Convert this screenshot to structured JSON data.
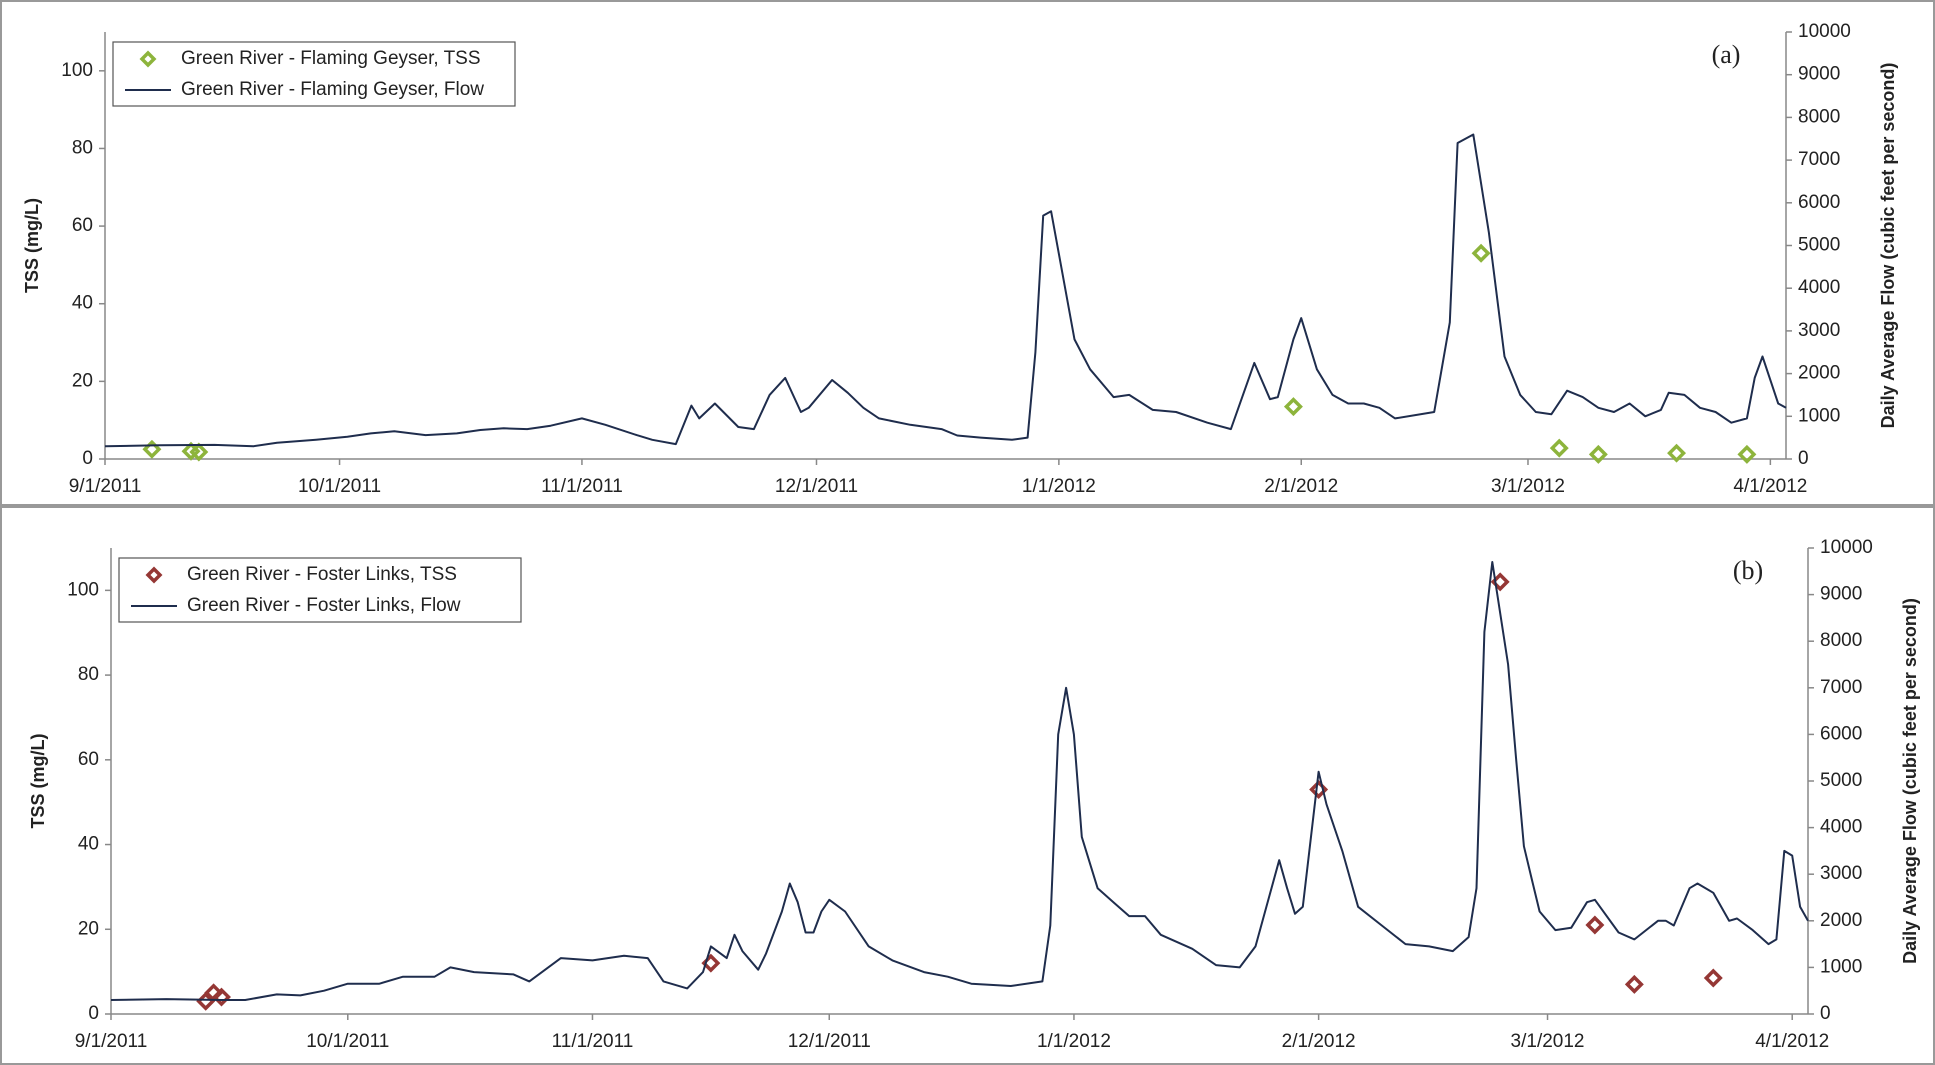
{
  "chart_data": [
    {
      "type": "line",
      "panel_label": "(a)",
      "y_label": "TSS (mg/L)",
      "y2_label": "Daily Average Flow (cubic feet per second)",
      "xlim": [
        "9/1/2011",
        "4/3/2012"
      ],
      "xticks": [
        "9/1/2011",
        "10/1/2011",
        "11/1/2011",
        "12/1/2011",
        "1/1/2012",
        "2/1/2012",
        "3/1/2012",
        "4/1/2012"
      ],
      "ylim": [
        0,
        110
      ],
      "yticks": [
        0,
        20,
        40,
        60,
        80,
        100
      ],
      "y2lim": [
        0,
        10000
      ],
      "y2ticks": [
        0,
        1000,
        2000,
        3000,
        4000,
        5000,
        6000,
        7000,
        8000,
        9000,
        10000
      ],
      "legend": "upper left",
      "series": [
        {
          "name": "Green River - Flaming Geyser, TSS",
          "marker": "diamond",
          "color": "#8db43c",
          "axis": "y",
          "x": [
            "9/7/2011",
            "9/12/2011",
            "9/13/2011",
            "1/31/2012",
            "2/24/2012",
            "3/5/2012",
            "3/10/2012",
            "3/20/2012",
            "3/29/2012"
          ],
          "values": [
            2.5,
            2,
            1.8,
            13.5,
            53,
            2.8,
            1.2,
            1.5,
            1.2
          ]
        },
        {
          "name": "Green River - Flaming Geyser, Flow",
          "marker": "line",
          "color": "#1f2d4d",
          "axis": "y2",
          "x": [
            "9/1/2011",
            "9/8/2011",
            "9/15/2011",
            "9/20/2011",
            "9/23/2011",
            "9/28/2011",
            "10/2/2011",
            "10/5/2011",
            "10/8/2011",
            "10/12/2011",
            "10/16/2011",
            "10/19/2011",
            "10/22/2011",
            "10/25/2011",
            "10/28/2011",
            "11/1/2011",
            "11/4/2011",
            "11/8/2011",
            "11/10/2011",
            "11/13/2011",
            "11/15/2011",
            "11/16/2011",
            "11/18/2011",
            "11/21/2011",
            "11/23/2011",
            "11/25/2011",
            "11/27/2011",
            "11/29/2011",
            "11/30/2011",
            "12/3/2011",
            "12/5/2011",
            "12/7/2011",
            "12/9/2011",
            "12/13/2011",
            "12/17/2011",
            "12/19/2011",
            "12/22/2011",
            "12/26/2011",
            "12/28/2011",
            "12/29/2011",
            "12/30/2011",
            "12/31/2011",
            "1/3/2012",
            "1/5/2012",
            "1/8/2012",
            "1/10/2012",
            "1/13/2012",
            "1/16/2012",
            "1/20/2012",
            "1/23/2012",
            "1/26/2012",
            "1/28/2012",
            "1/29/2012",
            "1/31/2012",
            "2/1/2012",
            "2/3/2012",
            "2/5/2012",
            "2/7/2012",
            "2/9/2012",
            "2/11/2012",
            "2/13/2012",
            "2/18/2012",
            "2/20/2012",
            "2/21/2012",
            "2/23/2012",
            "2/25/2012",
            "2/27/2012",
            "2/29/2012",
            "3/2/2012",
            "3/4/2012",
            "3/6/2012",
            "3/8/2012",
            "3/10/2012",
            "3/12/2012",
            "3/14/2012",
            "3/16/2012",
            "3/18/2012",
            "3/19/2012",
            "3/21/2012",
            "3/23/2012",
            "3/25/2012",
            "3/27/2012",
            "3/29/2012",
            "3/30/2012",
            "3/31/2012",
            "4/2/2012",
            "4/3/2012"
          ],
          "values": [
            300,
            320,
            330,
            300,
            380,
            450,
            520,
            600,
            650,
            560,
            600,
            680,
            720,
            700,
            780,
            950,
            800,
            560,
            450,
            350,
            1250,
            950,
            1300,
            750,
            700,
            1500,
            1900,
            1100,
            1200,
            1850,
            1550,
            1200,
            950,
            800,
            700,
            550,
            500,
            450,
            500,
            2500,
            5700,
            5800,
            2800,
            2100,
            1450,
            1500,
            1150,
            1100,
            850,
            700,
            2250,
            1400,
            1450,
            2800,
            3300,
            2100,
            1500,
            1300,
            1300,
            1200,
            950,
            1100,
            3200,
            7400,
            7600,
            5300,
            2400,
            1500,
            1100,
            1050,
            1600,
            1450,
            1200,
            1100,
            1300,
            1000,
            1150,
            1550,
            1500,
            1200,
            1100,
            850,
            950,
            1900,
            2400,
            1300,
            1200
          ]
        }
      ]
    },
    {
      "type": "line",
      "panel_label": "(b)",
      "y_label": "TSS (mg/L)",
      "y2_label": "Daily Average Flow (cubic feet per second)",
      "xlim": [
        "9/1/2011",
        "4/3/2012"
      ],
      "xticks": [
        "9/1/2011",
        "10/1/2011",
        "11/1/2011",
        "12/1/2011",
        "1/1/2012",
        "2/1/2012",
        "3/1/2012",
        "4/1/2012"
      ],
      "ylim": [
        0,
        110
      ],
      "yticks": [
        0,
        20,
        40,
        60,
        80,
        100
      ],
      "y2lim": [
        0,
        10000
      ],
      "y2ticks": [
        0,
        1000,
        2000,
        3000,
        4000,
        5000,
        6000,
        7000,
        8000,
        9000,
        10000
      ],
      "legend": "upper left",
      "series": [
        {
          "name": "Green River - Foster Links, TSS",
          "marker": "diamond",
          "color": "#953735",
          "axis": "y",
          "x": [
            "9/13/2011",
            "9/14/2011",
            "9/15/2011",
            "11/16/2011",
            "2/1/2012",
            "2/24/2012",
            "3/7/2012",
            "3/12/2012",
            "3/22/2012"
          ],
          "values": [
            3,
            5,
            4,
            12,
            53,
            102,
            21,
            7,
            8.5
          ]
        },
        {
          "name": "Green River - Foster Links, Flow",
          "marker": "line",
          "color": "#1f2d4d",
          "axis": "y2",
          "x": [
            "9/1/2011",
            "9/8/2011",
            "9/15/2011",
            "9/18/2011",
            "9/22/2011",
            "9/25/2011",
            "9/28/2011",
            "10/1/2011",
            "10/5/2011",
            "10/8/2011",
            "10/12/2011",
            "10/14/2011",
            "10/17/2011",
            "10/22/2011",
            "10/24/2011",
            "10/28/2011",
            "11/1/2011",
            "11/5/2011",
            "11/8/2011",
            "11/10/2011",
            "11/13/2011",
            "11/15/2011",
            "11/16/2011",
            "11/18/2011",
            "11/19/2011",
            "11/20/2011",
            "11/22/2011",
            "11/23/2011",
            "11/25/2011",
            "11/26/2011",
            "11/27/2011",
            "11/28/2011",
            "11/29/2011",
            "11/30/2011",
            "12/1/2011",
            "12/3/2011",
            "12/6/2011",
            "12/9/2011",
            "12/13/2011",
            "12/16/2011",
            "12/19/2011",
            "12/24/2011",
            "12/28/2011",
            "12/29/2011",
            "12/30/2011",
            "12/31/2011",
            "1/1/2012",
            "1/2/2012",
            "1/4/2012",
            "1/6/2012",
            "1/8/2012",
            "1/10/2012",
            "1/12/2012",
            "1/16/2012",
            "1/19/2012",
            "1/22/2012",
            "1/24/2012",
            "1/27/2012",
            "1/28/2012",
            "1/29/2012",
            "1/30/2012",
            "2/1/2012",
            "2/2/2012",
            "2/4/2012",
            "2/6/2012",
            "2/9/2012",
            "2/12/2012",
            "2/15/2012",
            "2/18/2012",
            "2/20/2012",
            "2/21/2012",
            "2/22/2012",
            "2/23/2012",
            "2/25/2012",
            "2/26/2012",
            "2/27/2012",
            "2/28/2012",
            "2/29/2012",
            "3/2/2012",
            "3/4/2012",
            "3/6/2012",
            "3/7/2012",
            "3/10/2012",
            "3/12/2012",
            "3/15/2012",
            "3/16/2012",
            "3/17/2012",
            "3/19/2012",
            "3/20/2012",
            "3/22/2012",
            "3/24/2012",
            "3/25/2012",
            "3/27/2012",
            "3/29/2012",
            "3/30/2012",
            "3/31/2012",
            "4/1/2012",
            "4/2/2012",
            "4/3/2012"
          ],
          "values": [
            300,
            320,
            300,
            300,
            420,
            400,
            500,
            650,
            650,
            800,
            800,
            1000,
            900,
            850,
            700,
            1200,
            1150,
            1250,
            1200,
            700,
            550,
            900,
            1450,
            1200,
            1700,
            1350,
            950,
            1300,
            2200,
            2800,
            2400,
            1750,
            1750,
            2200,
            2450,
            2200,
            1450,
            1150,
            900,
            800,
            650,
            600,
            700,
            1900,
            6000,
            7000,
            6000,
            3800,
            2700,
            2400,
            2100,
            2100,
            1700,
            1400,
            1050,
            1000,
            1450,
            3300,
            2700,
            2150,
            2300,
            5200,
            4500,
            3500,
            2300,
            1900,
            1500,
            1450,
            1350,
            1650,
            2700,
            8200,
            9700,
            7500,
            5500,
            3600,
            2900,
            2200,
            1800,
            1850,
            2400,
            2450,
            1750,
            1600,
            2000,
            2000,
            1900,
            2700,
            2800,
            2600,
            2000,
            2050,
            1800,
            1500,
            1600,
            3500,
            3400,
            2300,
            2000
          ]
        }
      ]
    }
  ]
}
